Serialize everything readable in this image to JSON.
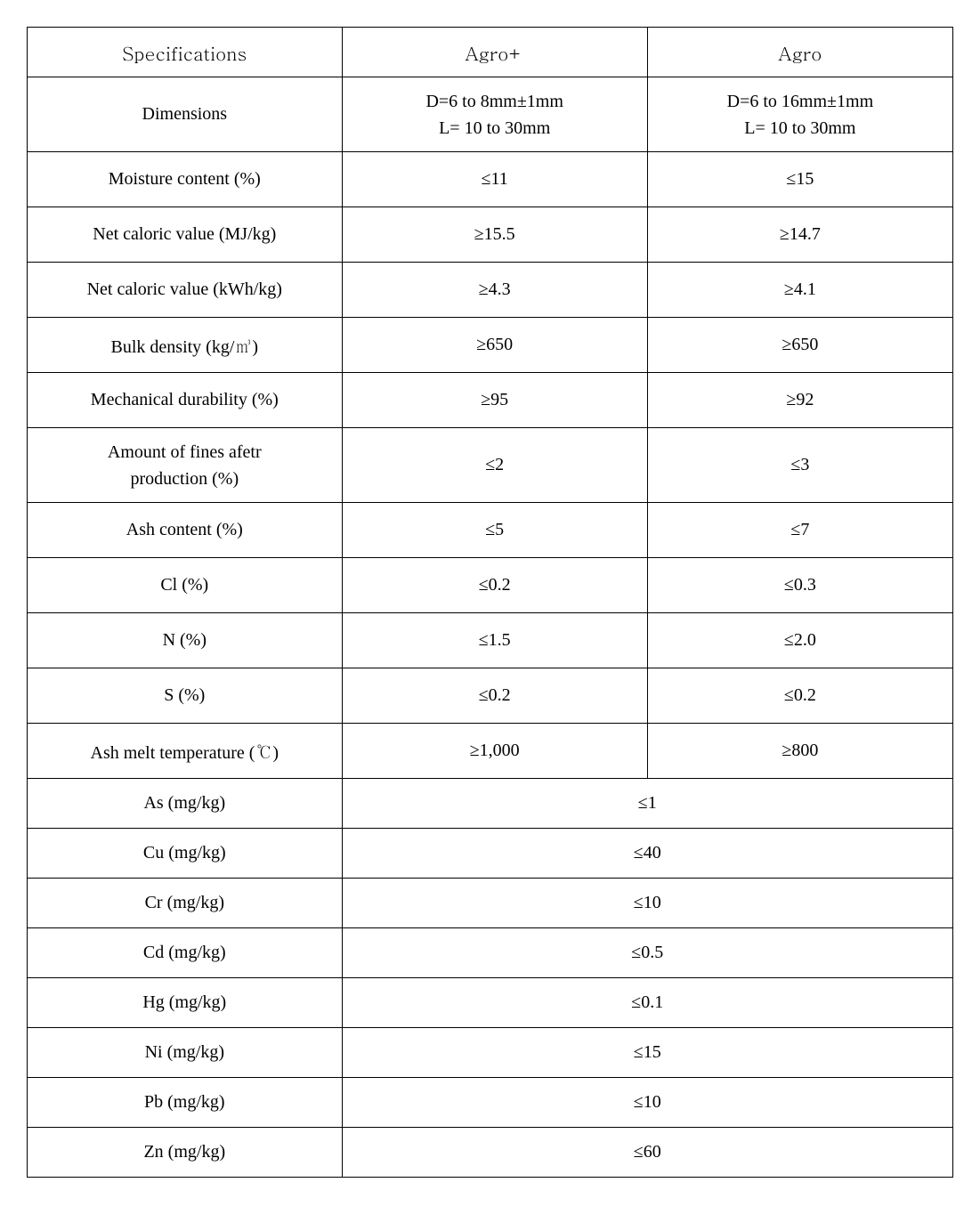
{
  "type": "table",
  "columns": [
    "Specifications",
    "Agro+",
    "Agro"
  ],
  "column_widths_pct": [
    34,
    33,
    33
  ],
  "header_fontsize_pt": 16,
  "cell_fontsize_pt": 15,
  "border_color": "#000000",
  "background_color": "#ffffff",
  "text_color": "#000000",
  "rows": [
    {
      "label": "Dimensions",
      "agro_plus": "D=6 to 8mm±1mm\nL= 10 to 30mm",
      "agro": "D=6 to 16mm±1mm\nL= 10 to 30mm",
      "height": "tall",
      "merged": false
    },
    {
      "label": "Moisture content (%)",
      "agro_plus": "≤11",
      "agro": "≤15",
      "height": "normal",
      "merged": false
    },
    {
      "label": "Net caloric value (MJ/kg)",
      "agro_plus": "≥15.5",
      "agro": "≥14.7",
      "height": "normal",
      "merged": false
    },
    {
      "label": "Net caloric value (kWh/kg)",
      "agro_plus": "≥4.3",
      "agro": "≥4.1",
      "height": "normal",
      "merged": false
    },
    {
      "label": "Bulk density (kg/㎥)",
      "agro_plus": "≥650",
      "agro": "≥650",
      "height": "normal",
      "merged": false
    },
    {
      "label": "Mechanical durability (%)",
      "agro_plus": "≥95",
      "agro": "≥92",
      "height": "normal",
      "merged": false
    },
    {
      "label": "Amount of fines afetr\nproduction (%)",
      "agro_plus": "≤2",
      "agro": "≤3",
      "height": "tall",
      "merged": false
    },
    {
      "label": "Ash content (%)",
      "agro_plus": "≤5",
      "agro": "≤7",
      "height": "normal",
      "merged": false
    },
    {
      "label": "Cl (%)",
      "agro_plus": "≤0.2",
      "agro": "≤0.3",
      "height": "normal",
      "merged": false
    },
    {
      "label": "N (%)",
      "agro_plus": "≤1.5",
      "agro": "≤2.0",
      "height": "normal",
      "merged": false
    },
    {
      "label": "S (%)",
      "agro_plus": "≤0.2",
      "agro": "≤0.2",
      "height": "normal",
      "merged": false
    },
    {
      "label": "Ash melt temperature (℃)",
      "agro_plus": "≥1,000",
      "agro": "≥800",
      "height": "normal",
      "merged": false
    },
    {
      "label": "As (mg/kg)",
      "merged_value": "≤1",
      "height": "short",
      "merged": true
    },
    {
      "label": "Cu (mg/kg)",
      "merged_value": "≤40",
      "height": "short",
      "merged": true
    },
    {
      "label": "Cr (mg/kg)",
      "merged_value": "≤10",
      "height": "short",
      "merged": true
    },
    {
      "label": "Cd (mg/kg)",
      "merged_value": "≤0.5",
      "height": "short",
      "merged": true
    },
    {
      "label": "Hg (mg/kg)",
      "merged_value": "≤0.1",
      "height": "short",
      "merged": true
    },
    {
      "label": "Ni (mg/kg)",
      "merged_value": "≤15",
      "height": "short",
      "merged": true
    },
    {
      "label": "Pb (mg/kg)",
      "merged_value": "≤10",
      "height": "short",
      "merged": true
    },
    {
      "label": "Zn (mg/kg)",
      "merged_value": "≤60",
      "height": "short",
      "merged": true
    }
  ]
}
